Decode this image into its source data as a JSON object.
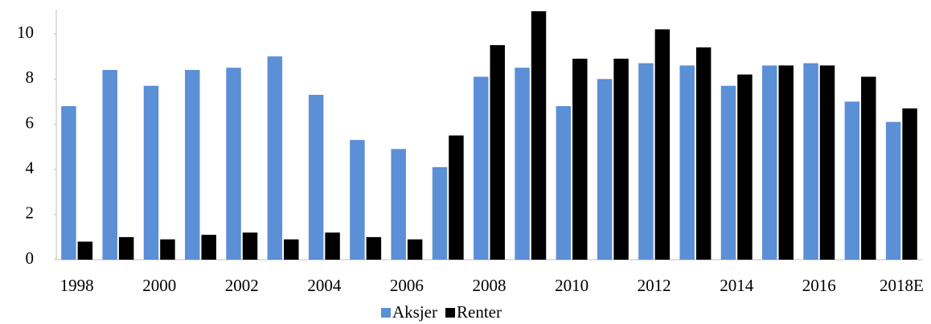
{
  "chart_data": {
    "type": "bar",
    "categories": [
      "1998",
      null,
      "2000",
      null,
      "2002",
      null,
      "2004",
      null,
      "2006",
      null,
      "2008",
      null,
      "2010",
      null,
      "2012",
      null,
      "2014",
      null,
      "2016",
      null,
      "2018E"
    ],
    "series": [
      {
        "name": "Aksjer",
        "color": "#5b8fd6",
        "values": [
          6.8,
          8.4,
          7.7,
          8.4,
          8.5,
          9.0,
          7.3,
          5.3,
          4.9,
          4.1,
          8.1,
          8.5,
          6.8,
          8.0,
          8.7,
          8.6,
          7.7,
          8.6,
          8.7,
          7.0,
          6.1
        ]
      },
      {
        "name": "Renter",
        "color": "#000000",
        "values": [
          0.8,
          1.0,
          0.9,
          1.1,
          1.2,
          0.9,
          1.2,
          1.0,
          0.9,
          5.5,
          9.5,
          11.0,
          8.9,
          8.9,
          10.2,
          9.4,
          8.2,
          8.6,
          8.6,
          8.1,
          6.7
        ]
      }
    ],
    "ylim": [
      0,
      11
    ],
    "yticks": [
      0,
      2,
      4,
      6,
      8,
      10
    ],
    "grid": false,
    "legend": "bottom"
  }
}
